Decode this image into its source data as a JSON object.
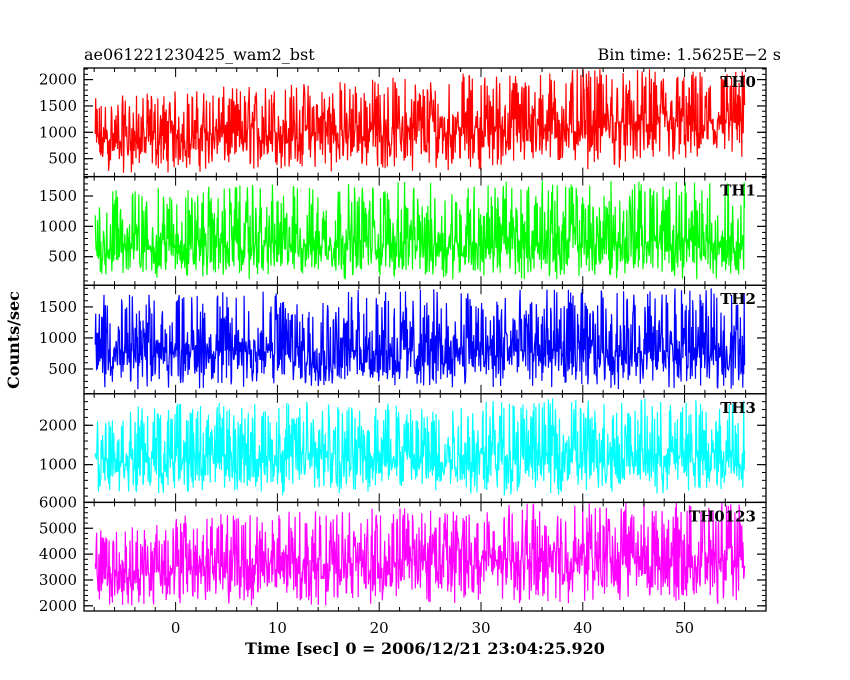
{
  "header": {
    "title": "ae061221230425_wam2_bst",
    "bin_time": "Bin time: 1.5625E−2 s"
  },
  "chart_data": {
    "type": "line",
    "title": "ae061221230425_wam2_bst",
    "subtitle": "Bin time: 1.5625E−2 s",
    "xlabel": "Time [sec] 0 = 2006/12/21 23:04:25.920",
    "ylabel": "Counts/sec",
    "xlim": [
      -9,
      58
    ],
    "data_x_range": [
      -7.9,
      55.9
    ],
    "x_ticks": [
      0,
      10,
      20,
      30,
      40,
      50
    ],
    "x_tick_labels": [
      "0",
      "10",
      "20",
      "30",
      "40",
      "50"
    ],
    "bin_seconds": 0.015625,
    "grid": false,
    "legend": "none",
    "panels": [
      {
        "name": "TH0",
        "color": "#ff0000",
        "ylim": [
          160,
          2220
        ],
        "y_ticks": [
          500,
          1000,
          1500,
          2000
        ],
        "y_tick_labels": [
          "500",
          "1000",
          "1500",
          "2000"
        ],
        "envelope": [
          {
            "x": -7.9,
            "low": 200,
            "typical": 850,
            "high": 1650
          },
          {
            "x": 0,
            "low": 210,
            "typical": 950,
            "high": 1800
          },
          {
            "x": 10,
            "low": 230,
            "typical": 1000,
            "high": 1950
          },
          {
            "x": 20,
            "low": 250,
            "typical": 1050,
            "high": 2050
          },
          {
            "x": 30,
            "low": 260,
            "typical": 1100,
            "high": 2150
          },
          {
            "x": 40,
            "low": 270,
            "typical": 1150,
            "high": 2200
          },
          {
            "x": 55.9,
            "low": 280,
            "typical": 1200,
            "high": 2200
          }
        ]
      },
      {
        "name": "TH1",
        "color": "#00ff00",
        "ylim": [
          30,
          1820
        ],
        "y_ticks": [
          500,
          1000,
          1500
        ],
        "y_tick_labels": [
          "500",
          "1000",
          "1500"
        ],
        "envelope": [
          {
            "x": -7.9,
            "low": 100,
            "typical": 700,
            "high": 1600
          },
          {
            "x": 10,
            "low": 110,
            "typical": 720,
            "high": 1700
          },
          {
            "x": 30,
            "low": 110,
            "typical": 730,
            "high": 1750
          },
          {
            "x": 55.9,
            "low": 120,
            "typical": 740,
            "high": 1750
          }
        ]
      },
      {
        "name": "TH2",
        "color": "#0000ff",
        "ylim": [
          100,
          1850
        ],
        "y_ticks": [
          500,
          1000,
          1500
        ],
        "y_tick_labels": [
          "500",
          "1000",
          "1500"
        ],
        "envelope": [
          {
            "x": -7.9,
            "low": 150,
            "typical": 800,
            "high": 1700
          },
          {
            "x": 20,
            "low": 150,
            "typical": 800,
            "high": 1800
          },
          {
            "x": 55.9,
            "low": 150,
            "typical": 800,
            "high": 1800
          }
        ]
      },
      {
        "name": "TH3",
        "color": "#00ffff",
        "ylim": [
          40,
          2800
        ],
        "y_ticks": [
          1000,
          2000
        ],
        "y_tick_labels": [
          "1000",
          "2000"
        ],
        "envelope": [
          {
            "x": -7.9,
            "low": 200,
            "typical": 1200,
            "high": 2500
          },
          {
            "x": 20,
            "low": 200,
            "typical": 1250,
            "high": 2700
          },
          {
            "x": 55.9,
            "low": 200,
            "typical": 1250,
            "high": 2700
          }
        ]
      },
      {
        "name": "TH0123",
        "color": "#ff00ff",
        "ylim": [
          1800,
          6000
        ],
        "y_ticks": [
          2000,
          3000,
          4000,
          5000,
          6000
        ],
        "y_tick_labels": [
          "2000",
          "3000",
          "4000",
          "5000",
          "6000"
        ],
        "envelope": [
          {
            "x": -7.9,
            "low": 1900,
            "typical": 3200,
            "high": 5000
          },
          {
            "x": 0,
            "low": 1950,
            "typical": 3500,
            "high": 5500
          },
          {
            "x": 20,
            "low": 2000,
            "typical": 3700,
            "high": 5800
          },
          {
            "x": 40,
            "low": 2000,
            "typical": 3800,
            "high": 6000
          },
          {
            "x": 55.9,
            "low": 2050,
            "typical": 3900,
            "high": 6000
          }
        ]
      }
    ]
  }
}
